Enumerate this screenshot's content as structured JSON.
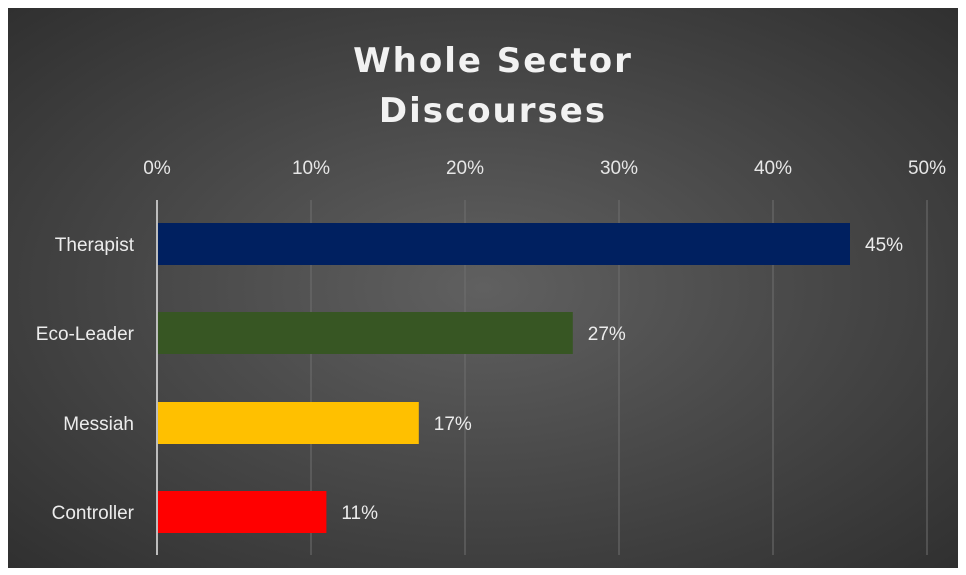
{
  "chart_data": {
    "type": "bar",
    "orientation": "horizontal",
    "title": "Whole Sector Discourses",
    "title_lines": [
      "Whole Sector",
      "Discourses"
    ],
    "categories": [
      "Therapist",
      "Eco-Leader",
      "Messiah",
      "Controller"
    ],
    "values": [
      45,
      27,
      17,
      11
    ],
    "data_labels": [
      "45%",
      "27%",
      "17%",
      "11%"
    ],
    "colors": [
      "#002060",
      "#375623",
      "#FFC000",
      "#FF0000"
    ],
    "xlim": [
      0,
      50
    ],
    "x_ticks": [
      0,
      10,
      20,
      30,
      40,
      50
    ],
    "x_tick_labels": [
      "0%",
      "10%",
      "20%",
      "30%",
      "40%",
      "50%"
    ],
    "axis_position": "top",
    "grid": true,
    "legend": "none",
    "background": "dark-gray-radial"
  }
}
